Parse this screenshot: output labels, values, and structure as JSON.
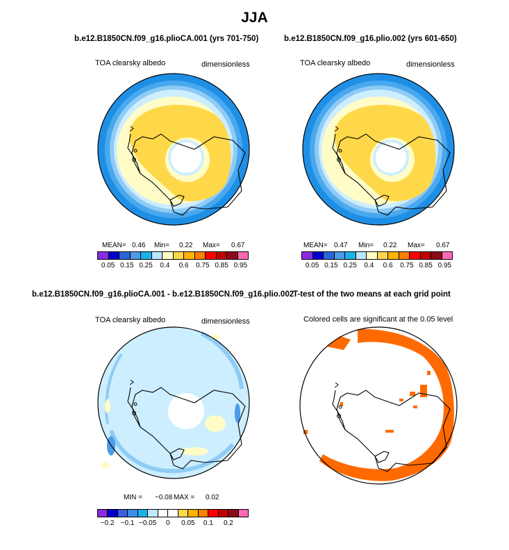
{
  "title": "JJA",
  "panels": [
    {
      "title": "b.e12.B1850CN.f09_g16.plioCA.001 (yrs 701-750)",
      "left_label": "TOA clearsky albedo",
      "right_label": "dimensionless",
      "stats": {
        "mean_label": "MEAN=",
        "mean": "0.46",
        "min_label": "Min=",
        "min": "0.22",
        "max_label": "Max=",
        "max": "0.67"
      }
    },
    {
      "title": "b.e12.B1850CN.f09_g16.plio.002 (yrs 601-650)",
      "left_label": "TOA clearsky albedo",
      "right_label": "dimensionless",
      "stats": {
        "mean_label": "MEAN=",
        "mean": "0.47",
        "min_label": "Min=",
        "min": "0.22",
        "max_label": "Max=",
        "max": "0.67"
      }
    },
    {
      "title": "b.e12.B1850CN.f09_g16.plioCA.001 - b.e12.B1850CN.f09_g16.plio.002",
      "left_label": "TOA clearsky albedo",
      "right_label": "dimensionless",
      "stats": {
        "min_label": "MIN =",
        "min": "−0.08",
        "max_label": "MAX =",
        "max": "0.02"
      }
    },
    {
      "title": "T-test of the two means at each grid point",
      "left_label": "Colored cells are significant at the 0.05 level"
    }
  ],
  "colorbar_abs": {
    "colors": [
      "#8a2be2",
      "#0000cd",
      "#2b65d9",
      "#4c9be8",
      "#19b2e8",
      "#bfe8ff",
      "#fffcc8",
      "#ffd84a",
      "#ffb300",
      "#ff8000",
      "#ff0000",
      "#c00000",
      "#8b0a1a",
      "#ff69b4"
    ],
    "tick_labels": [
      "0.05",
      "0.15",
      "0.25",
      "0.4",
      "0.6",
      "0.75",
      "0.85",
      "0.95"
    ]
  },
  "colorbar_diff": {
    "colors": [
      "#8a2be2",
      "#0000cd",
      "#3a5fe0",
      "#3b8de8",
      "#19b2e8",
      "#bfe8ff",
      "#ffffff",
      "#ffffff",
      "#ffd84a",
      "#ffb300",
      "#ff8000",
      "#ff0000",
      "#c00000",
      "#8b0a1a",
      "#ff69b4"
    ],
    "tick_labels": [
      "−0.2",
      "−0.1",
      "−0.05",
      "0",
      "0.05",
      "0.1",
      "0.2"
    ]
  },
  "ttest_color": "#ff6a00",
  "chart_data": [
    {
      "type": "heatmap",
      "title": "b.e12.B1850CN.f09_g16.plioCA.001 (yrs 701-750)",
      "variable": "TOA clearsky albedo",
      "units": "dimensionless",
      "mean": 0.46,
      "min": 0.22,
      "max": 0.67,
      "contour_levels": [
        0.05,
        0.1,
        0.15,
        0.2,
        0.25,
        0.3,
        0.4,
        0.5,
        0.6,
        0.7,
        0.75,
        0.8,
        0.85,
        0.9,
        0.95
      ]
    },
    {
      "type": "heatmap",
      "title": "b.e12.B1850CN.f09_g16.plio.002 (yrs 601-650)",
      "variable": "TOA clearsky albedo",
      "units": "dimensionless",
      "mean": 0.47,
      "min": 0.22,
      "max": 0.67,
      "contour_levels": [
        0.05,
        0.1,
        0.15,
        0.2,
        0.25,
        0.3,
        0.4,
        0.5,
        0.6,
        0.7,
        0.75,
        0.8,
        0.85,
        0.9,
        0.95
      ]
    },
    {
      "type": "heatmap",
      "title": "b.e12.B1850CN.f09_g16.plioCA.001 - b.e12.B1850CN.f09_g16.plio.002",
      "variable": "TOA clearsky albedo",
      "units": "dimensionless",
      "min": -0.08,
      "max": 0.02,
      "contour_levels": [
        -0.2,
        -0.15,
        -0.1,
        -0.07,
        -0.05,
        -0.02,
        0,
        0.02,
        0.05,
        0.07,
        0.1,
        0.15,
        0.2
      ]
    },
    {
      "type": "heatmap",
      "title": "T-test of the two means at each grid point",
      "note": "Colored cells are significant at the 0.05 level"
    }
  ]
}
